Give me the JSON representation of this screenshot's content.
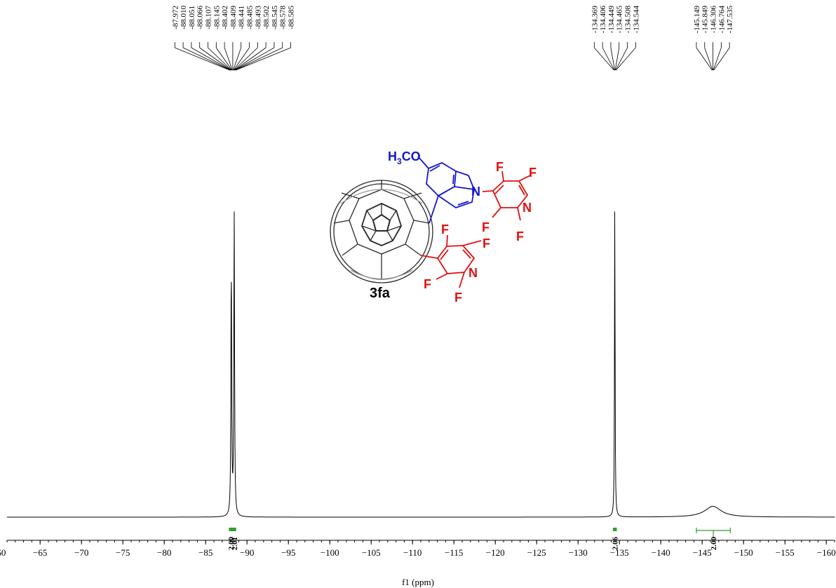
{
  "chart_data": {
    "type": "line",
    "title": "",
    "xlabel": "f1 (ppm)",
    "ylabel": "",
    "xlim": [
      -61,
      -161
    ],
    "x_ticks": [
      -60,
      -65,
      -70,
      -75,
      -80,
      -85,
      -90,
      -95,
      -100,
      -105,
      -110,
      -115,
      -120,
      -125,
      -130,
      -135,
      -140,
      -145,
      -150,
      -155,
      -160
    ],
    "x_tick_labels": [
      "−60",
      "−65",
      "−70",
      "−75",
      "−80",
      "−85",
      "−90",
      "−95",
      "−100",
      "−105",
      "−110",
      "−115",
      "−120",
      "−125",
      "−130",
      "−135",
      "−140",
      "−145",
      "−150",
      "−155",
      "−160"
    ],
    "grid": false,
    "peak_groups": [
      {
        "labels": [
          "-87.972",
          "-88.010",
          "-88.051",
          "-88.066",
          "-88.107",
          "-88.145",
          "-88.402",
          "-88.409",
          "-88.441",
          "-88.485",
          "-88.493",
          "-88.502",
          "-88.545",
          "-88.578",
          "-88.585"
        ],
        "target_ppm": -88.28
      },
      {
        "labels": [
          "-134.369",
          "-134.406",
          "-134.449",
          "-134.465",
          "-134.508",
          "-134.544"
        ],
        "target_ppm": -134.46
      },
      {
        "labels": [
          "-145.149",
          "-145.849",
          "-146.306",
          "-146.764",
          "-147.535"
        ],
        "target_ppm": -146.3
      }
    ],
    "peaks": [
      {
        "ppm": -88.1,
        "height": 0.82,
        "width": 0.05
      },
      {
        "ppm": -88.45,
        "height": 0.97,
        "width": 0.05
      },
      {
        "ppm": -134.44,
        "height": 1.0,
        "width": 0.04
      },
      {
        "ppm": -146.3,
        "height": 0.034,
        "width": 1.2
      }
    ],
    "integrals": [
      {
        "from": -87.9,
        "to": -88.15,
        "value": "2.00"
      },
      {
        "from": -88.3,
        "to": -88.6,
        "value": "2.01"
      },
      {
        "from": -134.3,
        "to": -134.6,
        "value": "2.06"
      },
      {
        "from": -144.3,
        "to": -148.4,
        "value": "2.00"
      }
    ]
  },
  "structure": {
    "compound_label": "3fa",
    "substituent_label": "H3CO",
    "atoms": {
      "nitrogen": "N",
      "fluorine": "F"
    },
    "colors": {
      "methoxy_indole": "#1515d0",
      "pyridyl": "#e01010",
      "fullerene": "#2a2a2a",
      "spectrum": "#000000",
      "integral": "#2e9e2e"
    }
  }
}
